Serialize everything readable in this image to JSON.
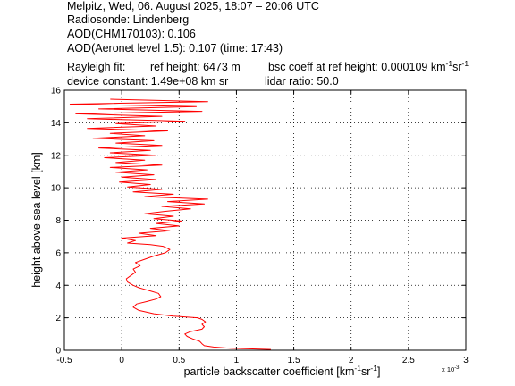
{
  "header": {
    "line1": "Melpitz, Wed, 06. August 2025, 18:07 – 20:06 UTC",
    "line2": "Radiosonde: Lindenberg",
    "line3": "AOD(CHM170103): 0.106",
    "line4": "AOD(Aeronet level 1.5): 0.107   (time: 17:43)",
    "rayleigh_label": "Rayleigh fit:",
    "ref_height": "ref height: 6473 m",
    "bsc_prefix": "bsc coeff at ref height: 0.000109 km",
    "bsc_exp1": "-1",
    "bsc_mid": "sr",
    "bsc_exp2": "-1",
    "device_constant": "device constant: 1.49e+08 km sr",
    "lidar_ratio": "lidar ratio: 50.0"
  },
  "chart_data": {
    "type": "line",
    "xlabel_prefix": "particle backscatter coefficient [km",
    "xlabel_exp1": "-1",
    "xlabel_mid": "sr",
    "xlabel_exp2": "-1",
    "xlabel_suffix": "]",
    "ylabel": "height above sea level [km]",
    "x_multiplier_base": "x 10",
    "x_multiplier_exp": "-3",
    "xlim": [
      -0.5,
      3
    ],
    "ylim": [
      0,
      16
    ],
    "xticks": [
      "-0.5",
      "0",
      "0.5",
      "1",
      "1.5",
      "2",
      "2.5",
      "3"
    ],
    "xtick_values": [
      -0.5,
      0,
      0.5,
      1,
      1.5,
      2,
      2.5,
      3
    ],
    "yticks": [
      "0",
      "2",
      "4",
      "6",
      "8",
      "10",
      "12",
      "14",
      "16"
    ],
    "ytick_values": [
      0,
      2,
      4,
      6,
      8,
      10,
      12,
      14,
      16
    ],
    "grid": true,
    "series": [
      {
        "color": "#ff0000",
        "points": [
          [
            1.3,
            0.05
          ],
          [
            0.95,
            0.12
          ],
          [
            0.8,
            0.2
          ],
          [
            0.72,
            0.28
          ],
          [
            0.7,
            0.4
          ],
          [
            0.68,
            0.55
          ],
          [
            0.62,
            0.7
          ],
          [
            0.57,
            0.85
          ],
          [
            0.55,
            1.0
          ],
          [
            0.6,
            1.15
          ],
          [
            0.7,
            1.3
          ],
          [
            0.72,
            1.45
          ],
          [
            0.7,
            1.6
          ],
          [
            0.73,
            1.75
          ],
          [
            0.7,
            1.9
          ],
          [
            0.66,
            2.0
          ],
          [
            0.45,
            2.1
          ],
          [
            0.28,
            2.25
          ],
          [
            0.15,
            2.45
          ],
          [
            0.1,
            2.65
          ],
          [
            0.13,
            2.85
          ],
          [
            0.22,
            3.0
          ],
          [
            0.3,
            3.15
          ],
          [
            0.34,
            3.3
          ],
          [
            0.32,
            3.5
          ],
          [
            0.25,
            3.65
          ],
          [
            0.2,
            3.75
          ],
          [
            0.15,
            3.85
          ],
          [
            0.1,
            4.0
          ],
          [
            0.05,
            4.2
          ],
          [
            0.04,
            4.4
          ],
          [
            0.08,
            4.6
          ],
          [
            0.12,
            4.8
          ],
          [
            0.1,
            5.0
          ],
          [
            0.16,
            5.2
          ],
          [
            0.12,
            5.4
          ],
          [
            0.2,
            5.6
          ],
          [
            0.28,
            5.8
          ],
          [
            0.38,
            6.0
          ],
          [
            0.42,
            6.2
          ],
          [
            0.36,
            6.4
          ],
          [
            0.25,
            6.5
          ],
          [
            0.05,
            6.6
          ],
          [
            0.12,
            6.75
          ],
          [
            0.0,
            6.9
          ],
          [
            0.3,
            7.05
          ],
          [
            0.15,
            7.2
          ],
          [
            0.42,
            7.35
          ],
          [
            0.25,
            7.5
          ],
          [
            0.5,
            7.65
          ],
          [
            0.3,
            7.8
          ],
          [
            0.52,
            7.95
          ],
          [
            0.28,
            8.1
          ],
          [
            0.45,
            8.25
          ],
          [
            0.2,
            8.4
          ],
          [
            0.38,
            8.55
          ],
          [
            0.6,
            8.7
          ],
          [
            0.35,
            8.85
          ],
          [
            0.72,
            9.0
          ],
          [
            0.4,
            9.15
          ],
          [
            0.75,
            9.3
          ],
          [
            0.2,
            9.45
          ],
          [
            0.45,
            9.6
          ],
          [
            0.1,
            9.75
          ],
          [
            0.35,
            9.9
          ],
          [
            0.05,
            10.05
          ],
          [
            0.25,
            10.2
          ],
          [
            -0.02,
            10.35
          ],
          [
            0.3,
            10.5
          ],
          [
            0.0,
            10.65
          ],
          [
            0.28,
            10.8
          ],
          [
            -0.05,
            10.95
          ],
          [
            0.22,
            11.1
          ],
          [
            -0.1,
            11.25
          ],
          [
            0.35,
            11.4
          ],
          [
            -0.05,
            11.55
          ],
          [
            0.2,
            11.7
          ],
          [
            -0.15,
            11.85
          ],
          [
            0.3,
            12.0
          ],
          [
            -0.1,
            12.15
          ],
          [
            0.25,
            12.3
          ],
          [
            -0.2,
            12.45
          ],
          [
            0.35,
            12.6
          ],
          [
            -0.05,
            12.75
          ],
          [
            0.28,
            12.9
          ],
          [
            -0.25,
            13.05
          ],
          [
            0.2,
            13.2
          ],
          [
            -0.1,
            13.35
          ],
          [
            0.4,
            13.5
          ],
          [
            -0.3,
            13.65
          ],
          [
            0.3,
            13.8
          ],
          [
            -0.05,
            13.95
          ],
          [
            0.55,
            14.1
          ],
          [
            -0.3,
            14.25
          ],
          [
            0.35,
            14.4
          ],
          [
            -0.4,
            14.55
          ],
          [
            0.7,
            14.7
          ],
          [
            -0.2,
            14.85
          ],
          [
            0.65,
            15.0
          ],
          [
            -0.45,
            15.15
          ],
          [
            0.75,
            15.3
          ],
          [
            -0.1,
            15.45
          ]
        ]
      }
    ]
  }
}
